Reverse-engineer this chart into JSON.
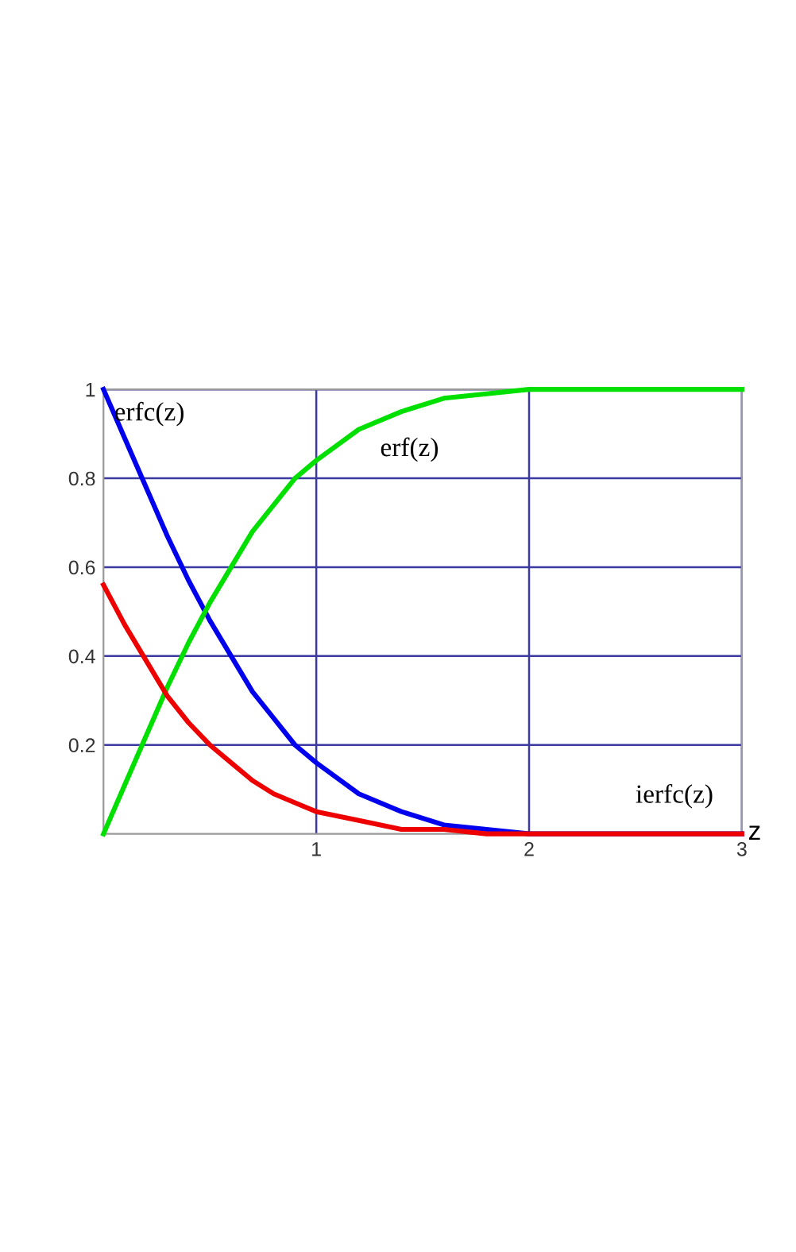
{
  "chart_data": {
    "type": "line",
    "xlabel": "z",
    "x": [
      0,
      0.1,
      0.2,
      0.3,
      0.4,
      0.5,
      0.6,
      0.7,
      0.8,
      0.9,
      1,
      1.2,
      1.4,
      1.6,
      1.8,
      2,
      2.5,
      3
    ],
    "series": [
      {
        "name": "erfc(z)",
        "color": "#0000ee",
        "values": [
          1,
          0.89,
          0.78,
          0.67,
          0.57,
          0.48,
          0.4,
          0.32,
          0.26,
          0.2,
          0.16,
          0.09,
          0.05,
          0.02,
          0.01,
          0.0,
          0.0,
          0.0
        ]
      },
      {
        "name": "erf(z)",
        "color": "#00e000",
        "values": [
          0,
          0.11,
          0.22,
          0.33,
          0.43,
          0.52,
          0.6,
          0.68,
          0.74,
          0.8,
          0.84,
          0.91,
          0.95,
          0.98,
          0.99,
          1.0,
          1.0,
          1.0
        ]
      },
      {
        "name": "ierfc(z)",
        "color": "#ee0000",
        "values": [
          0.56,
          0.47,
          0.39,
          0.31,
          0.25,
          0.2,
          0.16,
          0.12,
          0.09,
          0.07,
          0.05,
          0.03,
          0.01,
          0.01,
          0.0,
          0.0,
          0.0,
          0.0
        ]
      }
    ],
    "xlim": [
      0,
      3
    ],
    "ylim": [
      0,
      1
    ],
    "xticks": [
      1,
      2,
      3
    ],
    "yticks": [
      0.2,
      0.4,
      0.6,
      0.8,
      1
    ],
    "grid": true,
    "legend": false,
    "marker": "none",
    "line_style": "solid"
  }
}
